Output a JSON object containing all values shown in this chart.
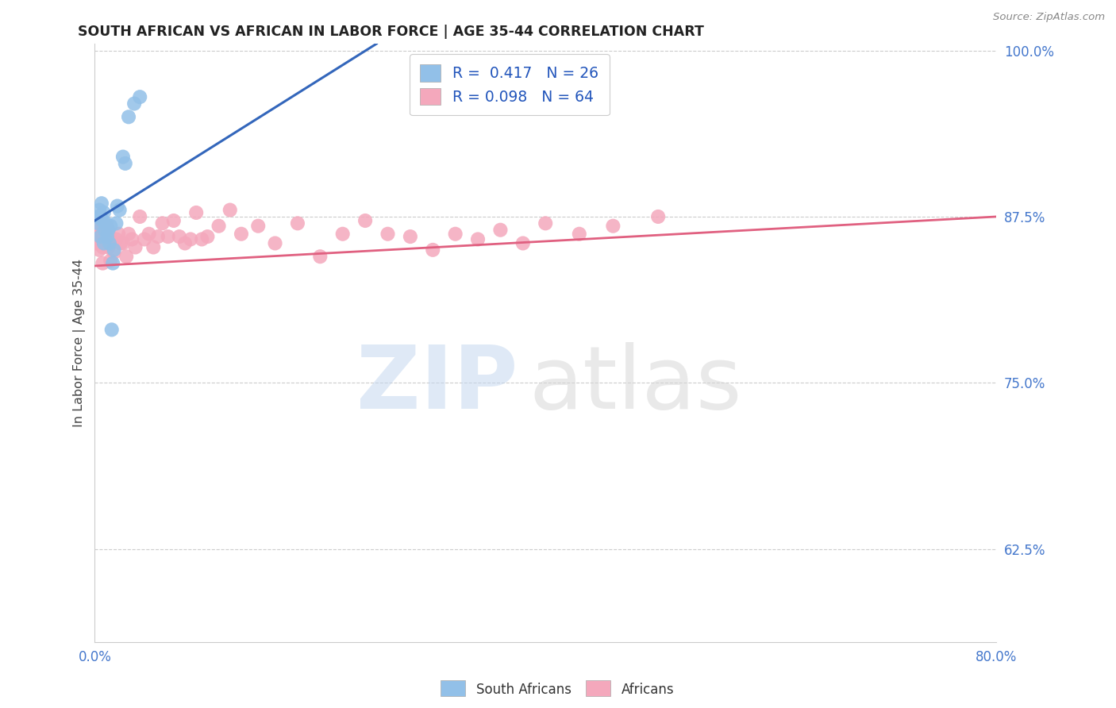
{
  "title": "SOUTH AFRICAN VS AFRICAN IN LABOR FORCE | AGE 35-44 CORRELATION CHART",
  "source": "Source: ZipAtlas.com",
  "ylabel": "In Labor Force | Age 35-44",
  "x_min": 0.0,
  "x_max": 0.8,
  "y_min": 0.555,
  "y_max": 1.005,
  "y_ticks": [
    0.625,
    0.75,
    0.875,
    1.0
  ],
  "y_tick_labels": [
    "62.5%",
    "75.0%",
    "87.5%",
    "100.0%"
  ],
  "blue_color": "#92C0E8",
  "pink_color": "#F4A8BC",
  "blue_line_color": "#3366BB",
  "pink_line_color": "#E06080",
  "tick_color": "#4477CC",
  "south_africans_x": [
    0.003,
    0.003,
    0.004,
    0.005,
    0.005,
    0.006,
    0.007,
    0.008,
    0.008,
    0.009,
    0.01,
    0.011,
    0.012,
    0.013,
    0.014,
    0.015,
    0.016,
    0.017,
    0.019,
    0.02,
    0.022,
    0.025,
    0.027,
    0.03,
    0.035,
    0.04
  ],
  "south_africans_y": [
    0.875,
    0.87,
    0.88,
    0.875,
    0.86,
    0.885,
    0.872,
    0.878,
    0.855,
    0.865,
    0.87,
    0.86,
    0.865,
    0.855,
    0.868,
    0.79,
    0.84,
    0.85,
    0.87,
    0.883,
    0.88,
    0.92,
    0.915,
    0.95,
    0.96,
    0.965
  ],
  "africans_x": [
    0.001,
    0.002,
    0.002,
    0.003,
    0.003,
    0.004,
    0.004,
    0.005,
    0.005,
    0.006,
    0.006,
    0.007,
    0.007,
    0.008,
    0.009,
    0.01,
    0.011,
    0.012,
    0.013,
    0.014,
    0.015,
    0.017,
    0.019,
    0.021,
    0.023,
    0.025,
    0.028,
    0.03,
    0.033,
    0.036,
    0.04,
    0.044,
    0.048,
    0.052,
    0.056,
    0.06,
    0.065,
    0.07,
    0.075,
    0.08,
    0.085,
    0.09,
    0.095,
    0.1,
    0.11,
    0.12,
    0.13,
    0.145,
    0.16,
    0.18,
    0.2,
    0.22,
    0.24,
    0.26,
    0.28,
    0.3,
    0.32,
    0.34,
    0.36,
    0.38,
    0.4,
    0.43,
    0.46,
    0.5
  ],
  "africans_y": [
    0.855,
    0.868,
    0.858,
    0.87,
    0.855,
    0.862,
    0.85,
    0.858,
    0.865,
    0.856,
    0.87,
    0.852,
    0.84,
    0.862,
    0.858,
    0.868,
    0.865,
    0.852,
    0.86,
    0.842,
    0.856,
    0.848,
    0.858,
    0.862,
    0.855,
    0.855,
    0.845,
    0.862,
    0.858,
    0.852,
    0.875,
    0.858,
    0.862,
    0.852,
    0.86,
    0.87,
    0.86,
    0.872,
    0.86,
    0.855,
    0.858,
    0.878,
    0.858,
    0.86,
    0.868,
    0.88,
    0.862,
    0.868,
    0.855,
    0.87,
    0.845,
    0.862,
    0.872,
    0.862,
    0.86,
    0.85,
    0.862,
    0.858,
    0.865,
    0.855,
    0.87,
    0.862,
    0.868,
    0.875
  ],
  "blue_line_x0": 0.0,
  "blue_line_y0": 0.872,
  "blue_line_x1": 0.25,
  "blue_line_y1": 1.005,
  "pink_line_x0": 0.0,
  "pink_line_y0": 0.838,
  "pink_line_x1": 0.8,
  "pink_line_y1": 0.875
}
